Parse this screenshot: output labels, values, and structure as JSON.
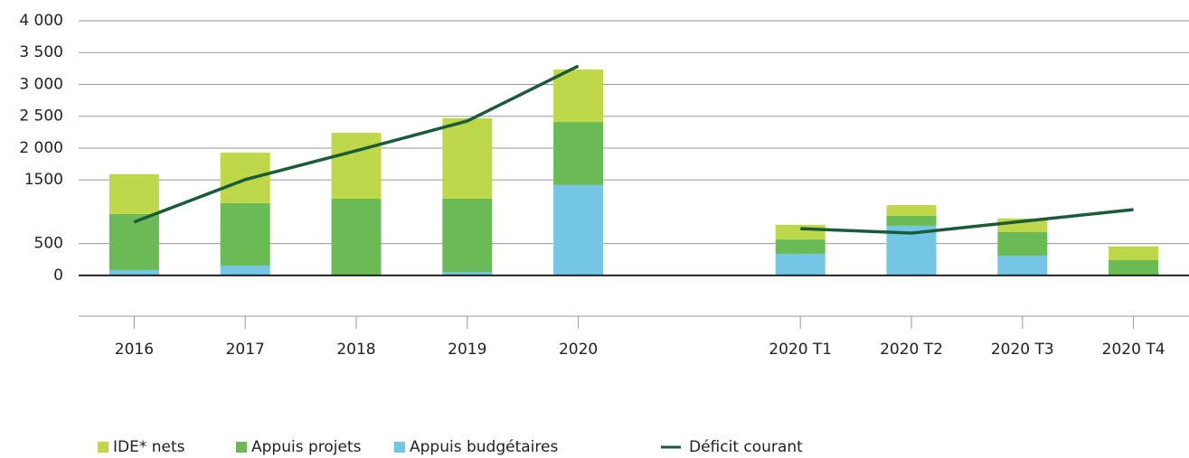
{
  "chart_data": {
    "type": "bar",
    "categories": [
      "2016",
      "2017",
      "2018",
      "2019",
      "2020",
      null,
      "2020 T1",
      "2020 T2",
      "2020 T3",
      "2020 T4"
    ],
    "series": [
      {
        "name": "IDE* nets",
        "color": "#bed84a",
        "values": [
          625,
          795,
          1035,
          1265,
          825,
          null,
          230,
          170,
          215,
          215
        ]
      },
      {
        "name": "Appuis projets",
        "color": "#6abb55",
        "values": [
          880,
          980,
          1205,
          1150,
          990,
          null,
          225,
          155,
          370,
          240
        ]
      },
      {
        "name": "Appuis budgétaires",
        "color": "#74c6e4",
        "values": [
          85,
          155,
          0,
          55,
          1420,
          null,
          340,
          780,
          310,
          0
        ]
      },
      {
        "name": "Déficit courant",
        "color": "#1a5c3a",
        "type": "line",
        "values": [
          840,
          1505,
          1960,
          2425,
          3290,
          null,
          735,
          665,
          850,
          1035
        ]
      }
    ],
    "ylim": [
      -640,
      4000
    ],
    "yticks": [
      0,
      500,
      1500,
      {
        "value": 2000,
        "label": "2 000"
      },
      {
        "value": 2500,
        "label": "2 500"
      },
      {
        "value": 3000,
        "label": "3 000"
      },
      {
        "value": 3500,
        "label": "3 500"
      },
      {
        "value": 4000,
        "label": "4 000"
      }
    ],
    "grid": true,
    "legend": "bottom"
  }
}
